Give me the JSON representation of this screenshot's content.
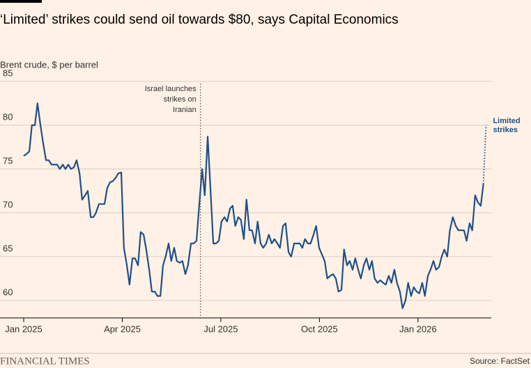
{
  "chart_data": {
    "type": "line",
    "title": "‘Limited’ strikes could send oil towards $80, says Capital Economics",
    "subtitle": "Brent crude, $ per barrel",
    "source": "Source: FactSet",
    "brand": "FINANCIAL TIMES",
    "xlim": [
      0,
      14.23
    ],
    "xticks": [
      {
        "value": 0,
        "label": "Jan 2025"
      },
      {
        "value": 3,
        "label": "Apr 2025"
      },
      {
        "value": 6,
        "label": "Jul 2025"
      },
      {
        "value": 9,
        "label": "Oct 2025"
      },
      {
        "value": 12,
        "label": "Jan 2026"
      }
    ],
    "ylim": [
      58,
      85
    ],
    "yticks": [
      60,
      65,
      70,
      75,
      80,
      85
    ],
    "grid": true,
    "series": [
      {
        "color": "#1f4f87",
        "style": "solid",
        "x": [
          0,
          0.08,
          0.17,
          0.25,
          0.34,
          0.42,
          0.51,
          0.59,
          0.68,
          0.76,
          0.85,
          0.93,
          1.02,
          1.1,
          1.19,
          1.27,
          1.36,
          1.44,
          1.53,
          1.61,
          1.7,
          1.78,
          1.87,
          1.95,
          2.04,
          2.12,
          2.2,
          2.29,
          2.37,
          2.46,
          2.54,
          2.63,
          2.71,
          2.8,
          2.88,
          2.97,
          3.05,
          3.14,
          3.22,
          3.31,
          3.39,
          3.48,
          3.56,
          3.65,
          3.73,
          3.82,
          3.9,
          3.99,
          4.07,
          4.16,
          4.24,
          4.32,
          4.41,
          4.49,
          4.58,
          4.66,
          4.75,
          4.83,
          4.92,
          5.0,
          5.09,
          5.17,
          5.26,
          5.34,
          5.43,
          5.51,
          5.6,
          5.68,
          5.77,
          5.85,
          5.94,
          6.02,
          6.11,
          6.19,
          6.28,
          6.36,
          6.44,
          6.53,
          6.61,
          6.7,
          6.78,
          6.87,
          6.95,
          7.04,
          7.12,
          7.21,
          7.29,
          7.38,
          7.46,
          7.55,
          7.63,
          7.72,
          7.8,
          7.89,
          7.97,
          8.06,
          8.14,
          8.23,
          8.31,
          8.4,
          8.48,
          8.56,
          8.65,
          8.73,
          8.82,
          8.9,
          8.99,
          9.07,
          9.16,
          9.24,
          9.33,
          9.41,
          9.5,
          9.58,
          9.67,
          9.75,
          9.84,
          9.92,
          10.01,
          10.09,
          10.18,
          10.26,
          10.35,
          10.43,
          10.52,
          10.6,
          10.68,
          10.77,
          10.85,
          10.94,
          11.02,
          11.11,
          11.19,
          11.28,
          11.36,
          11.45,
          11.53,
          11.62,
          11.7,
          11.79,
          11.87,
          11.96,
          12.04,
          12.13,
          12.21,
          12.3,
          12.38,
          12.47,
          12.55,
          12.64,
          12.72,
          12.8,
          12.89,
          12.97,
          13.06,
          13.15,
          13.23,
          13.31,
          13.4,
          13.48,
          13.57,
          13.65,
          13.74,
          13.82,
          13.91,
          13.99
        ],
        "values": [
          76.5,
          76.7,
          77,
          80,
          80,
          82.5,
          80,
          78,
          76,
          76,
          75.5,
          75.5,
          75.5,
          75,
          75.5,
          75,
          75.5,
          75,
          75.2,
          76,
          74.5,
          71.5,
          72,
          72.5,
          69.5,
          69.5,
          70,
          71,
          71,
          71,
          72.8,
          73.5,
          73.6,
          74,
          74.5,
          74.6,
          66,
          64,
          61.8,
          64.8,
          64.8,
          64,
          67.8,
          67.5,
          65.8,
          63.5,
          61,
          61,
          60.5,
          60.5,
          64,
          65,
          66.5,
          64.5,
          66,
          64.5,
          64.3,
          64.5,
          63,
          64,
          66.5,
          66.5,
          66.8,
          70.8,
          75,
          72,
          78.7,
          73,
          66.5,
          66.5,
          66.8,
          69,
          69.5,
          69,
          70.5,
          70.8,
          68.5,
          69.5,
          69.2,
          67,
          71.5,
          68,
          68,
          66.5,
          69,
          66.5,
          66,
          66.5,
          67.5,
          66.5,
          67,
          66.5,
          66,
          68.5,
          68.8,
          65.5,
          65,
          66.5,
          66.5,
          66.5,
          66,
          67,
          66.5,
          66.5,
          67.5,
          68.5,
          66,
          65.3,
          64.5,
          62.5,
          62.8,
          63,
          62.5,
          61,
          61.2,
          65.8,
          64,
          64.5,
          63.5,
          64.8,
          63.5,
          62.5,
          64,
          64.8,
          63.5,
          64.5,
          62.5,
          62,
          62.3,
          62,
          61.8,
          62.8,
          62,
          63.5,
          62,
          61,
          59.1,
          60,
          62,
          60.5,
          61.5,
          61,
          60.8,
          62,
          60.5,
          62.8,
          63.5,
          64.5,
          63.5,
          63.8,
          65,
          65.8,
          65,
          68,
          69.5,
          68.5,
          68,
          68,
          68,
          66.8,
          68.8,
          68,
          72,
          71.2,
          70.8,
          73.3
        ]
      },
      {
        "name": "Limited strikes",
        "color": "#1f4f87",
        "style": "dotted",
        "x": [
          13.99,
          14.07
        ],
        "values": [
          73.3,
          80
        ]
      }
    ],
    "annotations": [
      {
        "x": 5.38,
        "text": [
          "Israel launches",
          "strikes on",
          "Iranian"
        ]
      }
    ]
  }
}
